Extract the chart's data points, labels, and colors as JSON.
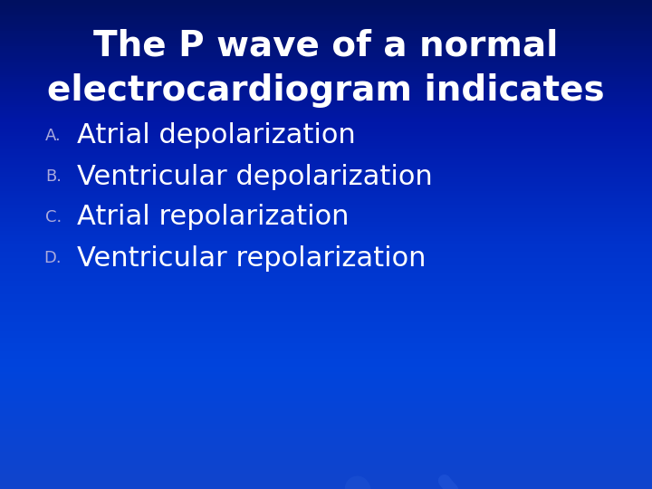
{
  "title_line1": "The P wave of a normal",
  "title_line2": "electrocardiogram indicates",
  "options": [
    {
      "label": "A.",
      "text": "Atrial depolarization"
    },
    {
      "label": "B.",
      "text": "Ventricular depolarization"
    },
    {
      "label": "C.",
      "text": "Atrial repolarization"
    },
    {
      "label": "D.",
      "text": "Ventricular repolarization"
    }
  ],
  "title_color": "#ffffff",
  "label_color": "#aaaadd",
  "option_color": "#ffffff",
  "title_fontsize": 28,
  "option_fontsize": 22,
  "label_fontsize": 13
}
